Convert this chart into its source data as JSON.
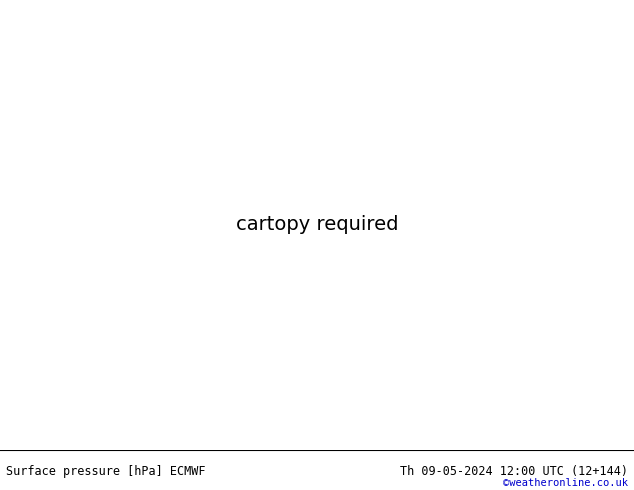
{
  "bottom_left_text": "Surface pressure [hPa] ECMWF",
  "bottom_right_text": "Th 09-05-2024 12:00 UTC (12+144)",
  "copyright_text": "©weatheronline.co.uk",
  "land_color": "#c8e6a0",
  "ocean_color": "#c8d4e8",
  "border_color": "#888888",
  "coast_color": "#666666",
  "bottom_bar_color": "#ffffff",
  "isobar_blue_color": "#0000dd",
  "isobar_red_color": "#dd0000",
  "isobar_black_color": "#000000",
  "fig_width": 6.34,
  "fig_height": 4.9,
  "dpi": 100,
  "bottom_bar_height": 0.082,
  "extent": [
    -22,
    62,
    -42,
    42
  ]
}
